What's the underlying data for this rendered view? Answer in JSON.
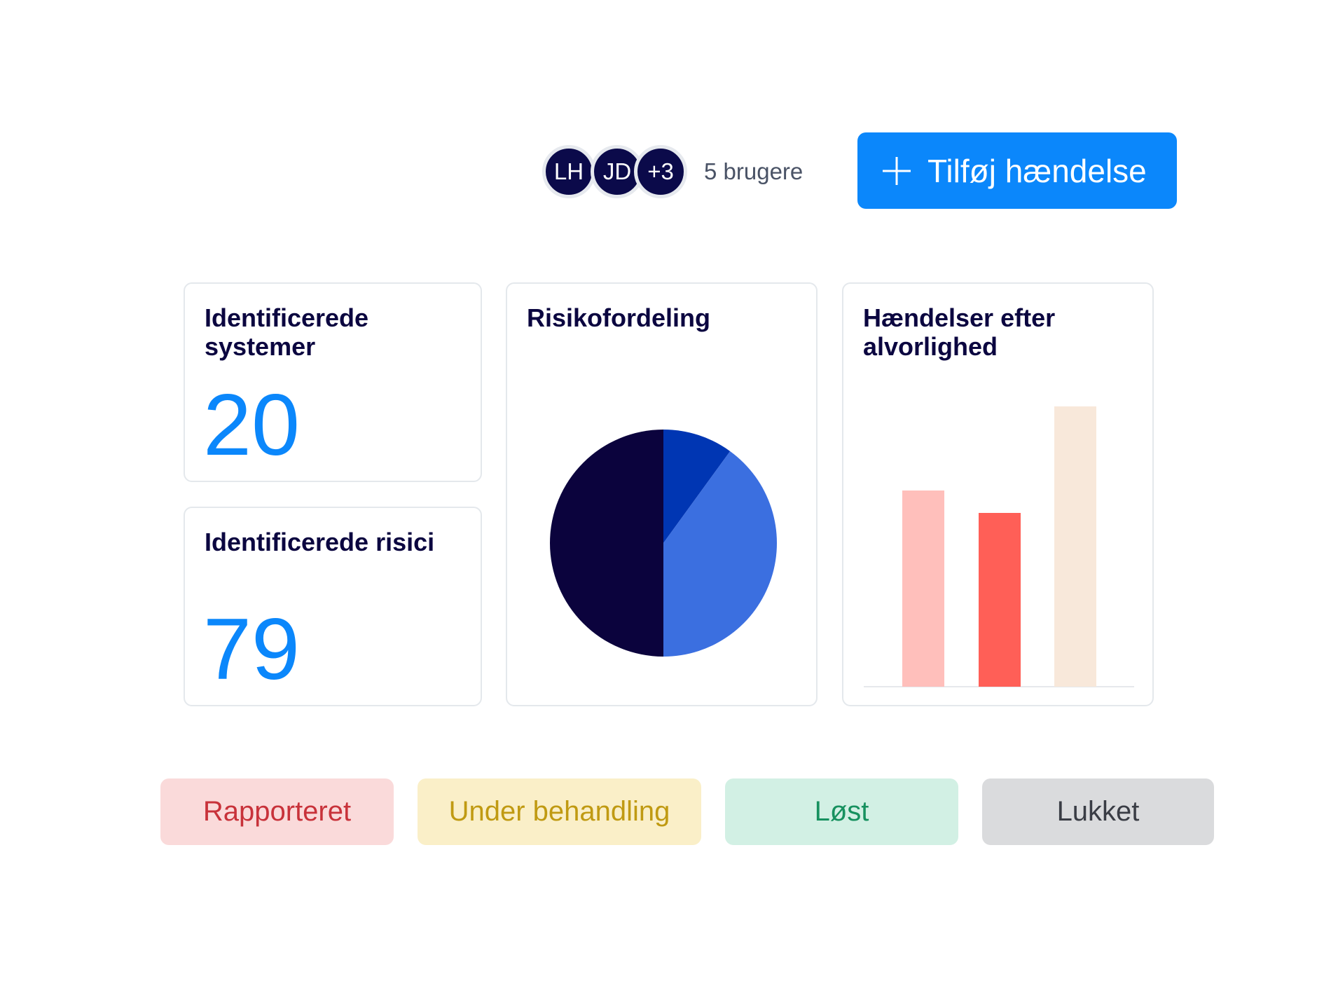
{
  "header": {
    "avatars": [
      {
        "initials": "LH"
      },
      {
        "initials": "JD"
      },
      {
        "initials": "+3"
      }
    ],
    "users_label": "5 brugere",
    "add_button_label": "Tilføj hændelse",
    "add_icon": "plus-icon",
    "accent_color": "#0b87fb"
  },
  "cards": {
    "systems": {
      "title": "Identificerede systemer",
      "value": "20"
    },
    "risks": {
      "title": "Identificerede risici",
      "value": "79"
    },
    "risk_distribution": {
      "title": "Risikofordeling"
    },
    "incidents_by_severity": {
      "title": "Hændelser efter alvorlighed"
    }
  },
  "chart_data": [
    {
      "type": "pie",
      "title": "Risikofordeling",
      "values": [
        10,
        40,
        50
      ],
      "colors": [
        "#0036b3",
        "#3b6fe0",
        "#0b033d"
      ]
    },
    {
      "type": "bar",
      "title": "Hændelser efter alvorlighed",
      "values": [
        7,
        6.2,
        10
      ],
      "colors": [
        "#ffbfbb",
        "#ff5f57",
        "#f8e8da"
      ],
      "ylim": [
        0,
        10
      ],
      "grid": false
    }
  ],
  "statuses": [
    {
      "label": "Rapporteret",
      "bg": "#fadada",
      "fg": "#c8323a"
    },
    {
      "label": "Under behandling",
      "bg": "#faefc8",
      "fg": "#c09a12"
    },
    {
      "label": "Løst",
      "bg": "#d2f0e4",
      "fg": "#17915f"
    },
    {
      "label": "Lukket",
      "bg": "#dadbdd",
      "fg": "#3a3d45"
    }
  ]
}
